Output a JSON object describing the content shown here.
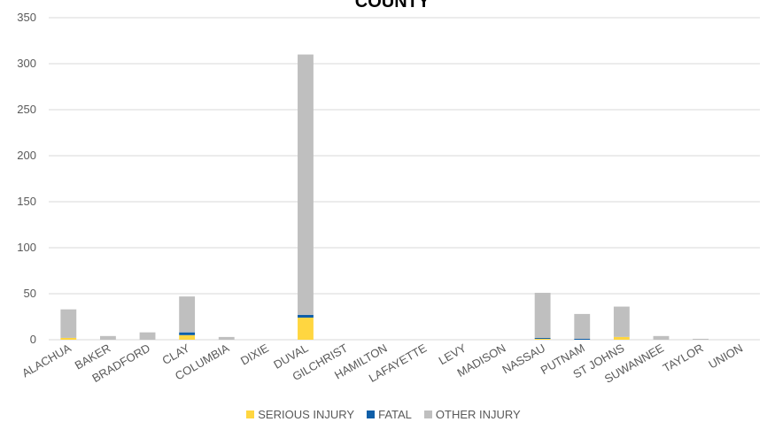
{
  "chart_data": {
    "type": "bar",
    "stacked": true,
    "title": "COUNTY",
    "xlabel": "",
    "ylabel": "",
    "ylim": [
      0,
      350
    ],
    "yticks": [
      0,
      50,
      100,
      150,
      200,
      250,
      300,
      350
    ],
    "grid": true,
    "legend_position": "bottom",
    "categories": [
      "ALACHUA",
      "BAKER",
      "BRADFORD",
      "CLAY",
      "COLUMBIA",
      "DIXIE",
      "DUVAL",
      "GILCHRIST",
      "HAMILTON",
      "LAFAYETTE",
      "LEVY",
      "MADISON",
      "NASSAU",
      "PUTNAM",
      "ST JOHNS",
      "SUWANNEE",
      "TAYLOR",
      "UNION"
    ],
    "series": [
      {
        "name": "SERIOUS INJURY",
        "color": "#ffd640",
        "values": [
          2,
          0,
          0,
          5,
          0,
          0,
          24,
          0,
          0,
          0,
          0,
          0,
          1,
          0,
          3,
          0,
          0,
          0
        ]
      },
      {
        "name": "FATAL",
        "color": "#0f5fa8",
        "values": [
          0,
          0,
          0,
          3,
          0,
          0,
          3,
          0,
          0,
          0,
          0,
          0,
          1,
          1,
          0,
          0,
          0,
          0
        ]
      },
      {
        "name": "OTHER INJURY",
        "color": "#bfbfbf",
        "values": [
          31,
          4,
          8,
          39,
          3,
          0,
          283,
          0,
          0,
          0,
          0,
          0,
          49,
          27,
          33,
          4,
          1,
          0
        ]
      }
    ]
  }
}
